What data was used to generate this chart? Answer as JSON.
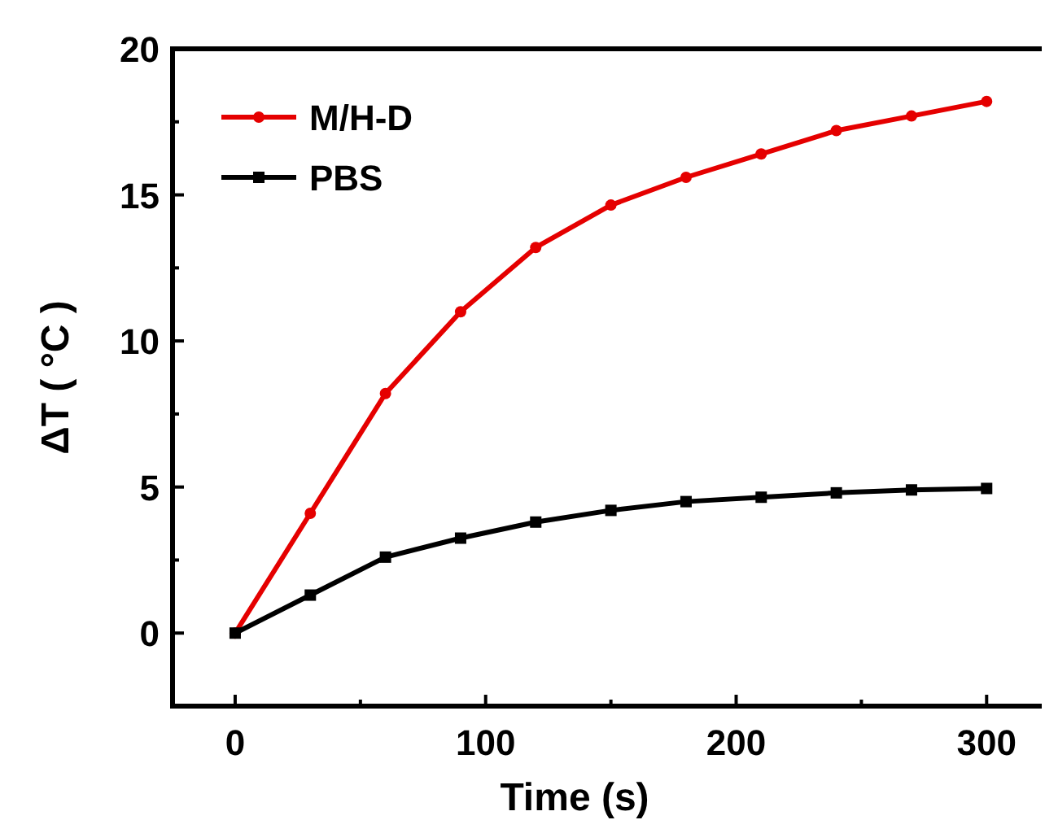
{
  "chart_data": {
    "type": "line",
    "xlabel": "Time (s)",
    "ylabel": "ΔT ( °C )",
    "x": [
      0,
      30,
      60,
      90,
      120,
      150,
      180,
      210,
      240,
      270,
      300
    ],
    "series": [
      {
        "name": "M/H-D",
        "color": "#e50000",
        "marker": "circle",
        "values": [
          0,
          4.1,
          8.2,
          11.0,
          13.2,
          14.65,
          15.6,
          16.4,
          17.2,
          17.7,
          18.2
        ]
      },
      {
        "name": "PBS",
        "color": "#000000",
        "marker": "square",
        "values": [
          0,
          1.3,
          2.6,
          3.25,
          3.8,
          4.2,
          4.5,
          4.65,
          4.8,
          4.9,
          4.95
        ]
      }
    ],
    "xlim": [
      -25,
      322
    ],
    "ylim": [
      -2.5,
      20
    ],
    "xticks": [
      0,
      {
        "value": 50,
        "label": null
      },
      100,
      {
        "value": 150,
        "label": null
      },
      200,
      {
        "value": 250,
        "label": null
      },
      300
    ],
    "yticks": [
      0,
      {
        "value": 2.5,
        "label": null
      },
      5,
      {
        "value": 7.5,
        "label": null
      },
      10,
      {
        "value": 12.5,
        "label": null
      },
      15,
      {
        "value": 17.5,
        "label": null
      },
      20
    ],
    "legend": "top left",
    "grid": false
  }
}
